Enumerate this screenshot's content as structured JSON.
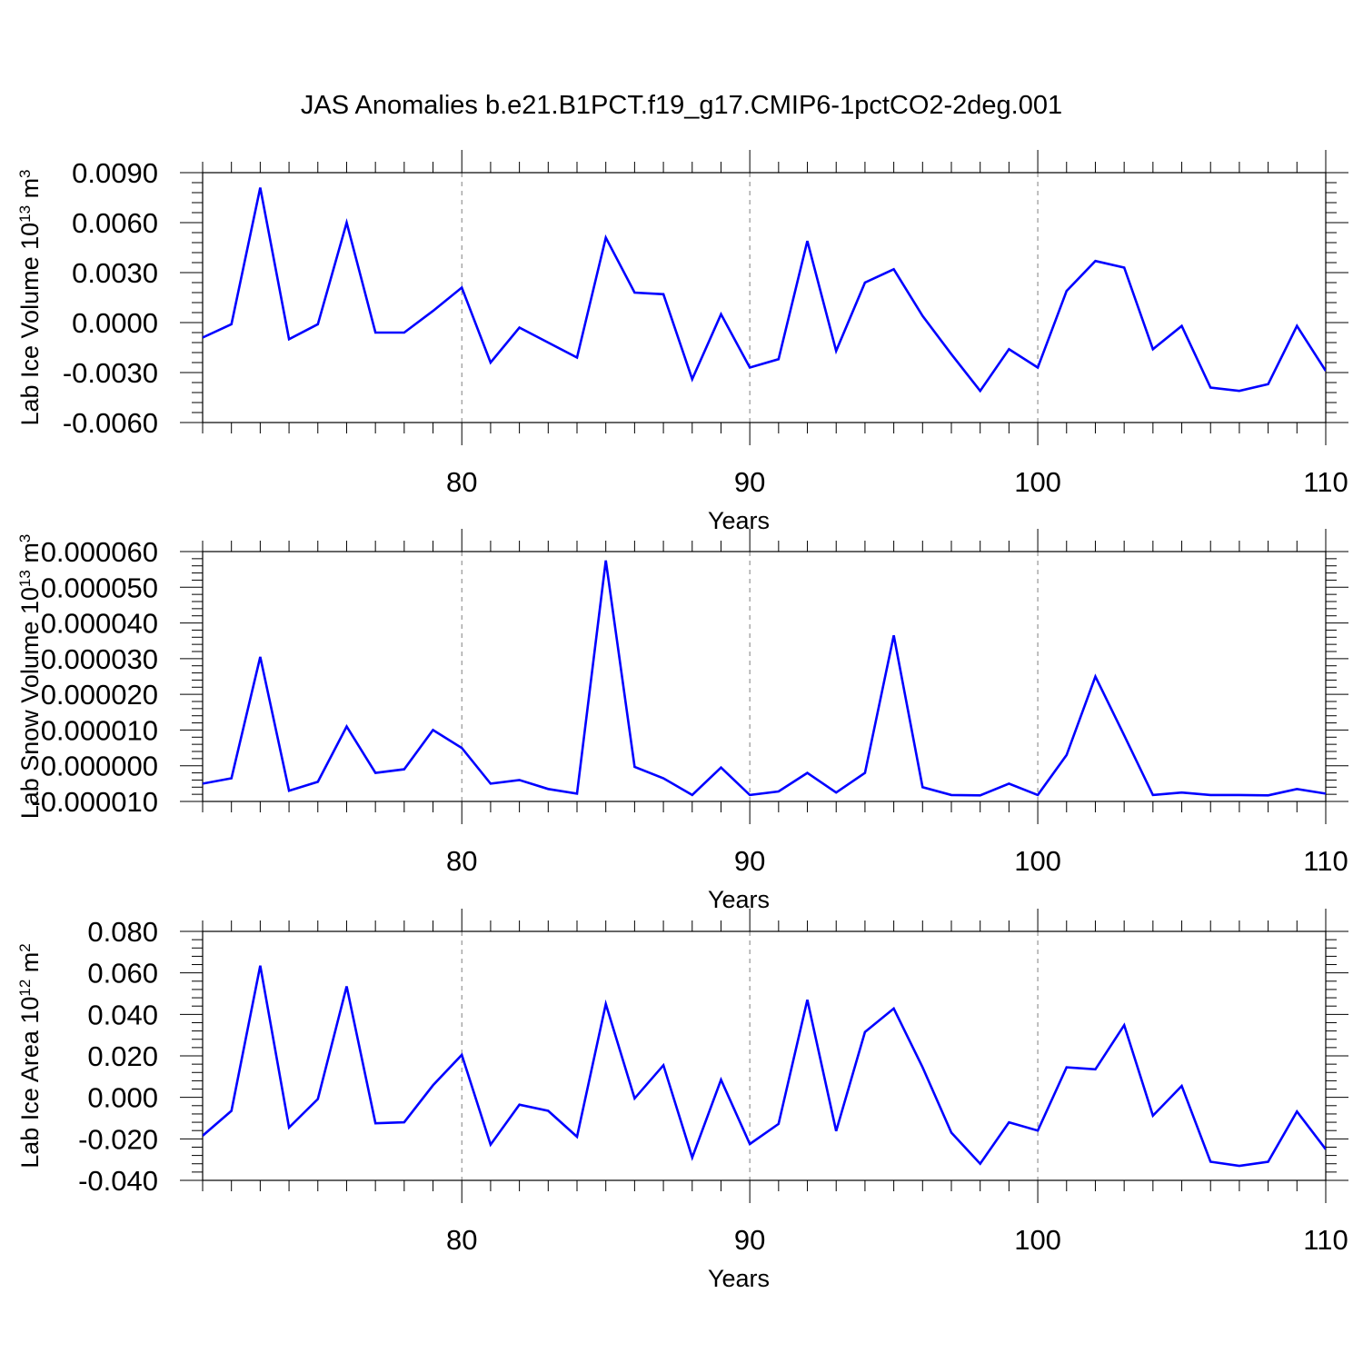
{
  "title": "JAS Anomalies b.e21.B1PCT.f19_g17.CMIP6-1pctCO2-2deg.001",
  "colors": {
    "series": "#0000ff",
    "axis": "#000000",
    "grid": "#808080"
  },
  "chart_data": [
    {
      "type": "line",
      "ylabel": "Lab Ice Volume 10",
      "ylabel_exp": "13",
      "ylabel_unit": " m",
      "ylabel_unit_exp": "3",
      "xlabel": "Years",
      "xlim": [
        71,
        110
      ],
      "ylim": [
        -0.006,
        0.009
      ],
      "y_ticks": [
        -0.006,
        -0.003,
        0.0,
        0.003,
        0.006,
        0.009
      ],
      "y_tick_labels": [
        "-0.0060",
        "-0.0030",
        "0.0000",
        "0.0030",
        "0.0060",
        "0.0090"
      ],
      "x_ticks": [
        80,
        90,
        100,
        110
      ],
      "x_tick_labels": [
        "80",
        "90",
        "100",
        "110"
      ],
      "grid_x": [
        80,
        90,
        100
      ],
      "x": [
        71,
        72,
        73,
        74,
        75,
        76,
        77,
        78,
        79,
        80,
        81,
        82,
        83,
        84,
        85,
        86,
        87,
        88,
        89,
        90,
        91,
        92,
        93,
        94,
        95,
        96,
        97,
        98,
        99,
        100,
        101,
        102,
        103,
        104,
        105,
        106,
        107,
        108,
        109,
        110
      ],
      "values": [
        -0.0009,
        -0.0001,
        0.0081,
        -0.001,
        -0.0001,
        0.006,
        -0.0006,
        -0.0006,
        0.0007,
        0.0021,
        -0.0024,
        -0.0003,
        -0.0012,
        -0.0021,
        0.0051,
        0.0018,
        0.0017,
        -0.0034,
        0.0005,
        -0.0027,
        -0.0022,
        0.0049,
        -0.0017,
        0.0024,
        0.0032,
        0.0004,
        -0.0019,
        -0.0041,
        -0.0016,
        -0.0027,
        0.0019,
        0.0037,
        0.0033,
        -0.0016,
        -0.0002,
        -0.0039,
        -0.0041,
        -0.0037,
        -0.0002,
        -0.0029
      ]
    },
    {
      "type": "line",
      "ylabel": "Lab Snow Volume 10",
      "ylabel_exp": "13",
      "ylabel_unit": " m",
      "ylabel_unit_exp": "3",
      "xlabel": "Years",
      "xlim": [
        71,
        110
      ],
      "ylim": [
        -1e-05,
        6e-05
      ],
      "y_ticks": [
        -1e-05,
        0.0,
        1e-05,
        2e-05,
        3e-05,
        4e-05,
        5e-05,
        6e-05
      ],
      "y_tick_labels": [
        "-0.000010",
        "0.000000",
        "0.000010",
        "0.000020",
        "0.000030",
        "0.000040",
        "0.000050",
        "0.000060"
      ],
      "x_ticks": [
        80,
        90,
        100,
        110
      ],
      "x_tick_labels": [
        "80",
        "90",
        "100",
        "110"
      ],
      "grid_x": [
        80,
        90,
        100
      ],
      "x": [
        71,
        72,
        73,
        74,
        75,
        76,
        77,
        78,
        79,
        80,
        81,
        82,
        83,
        84,
        85,
        86,
        87,
        88,
        89,
        90,
        91,
        92,
        93,
        94,
        95,
        96,
        97,
        98,
        99,
        100,
        101,
        102,
        103,
        104,
        105,
        106,
        107,
        108,
        109,
        110
      ],
      "values": [
        -5e-06,
        -3.5e-06,
        3.05e-05,
        -7e-06,
        -4.5e-06,
        1.1e-05,
        -2e-06,
        -1e-06,
        1e-05,
        5e-06,
        -5e-06,
        -4e-06,
        -6.5e-06,
        -7.8e-06,
        5.75e-05,
        -3e-07,
        -3.5e-06,
        -8.2e-06,
        -5e-07,
        -8.2e-06,
        -7.2e-06,
        -2e-06,
        -7.5e-06,
        -2e-06,
        3.65e-05,
        -6e-06,
        -8.2e-06,
        -8.3e-06,
        -5e-06,
        -8.2e-06,
        3e-06,
        2.5e-05,
        8.5e-06,
        -8.2e-06,
        -7.5e-06,
        -8.2e-06,
        -8.2e-06,
        -8.3e-06,
        -6.5e-06,
        -7.8e-06
      ]
    },
    {
      "type": "line",
      "ylabel": "Lab Ice Area 10",
      "ylabel_exp": "12",
      "ylabel_unit": " m",
      "ylabel_unit_exp": "2",
      "xlabel": "Years",
      "xlim": [
        71,
        110
      ],
      "ylim": [
        -0.04,
        0.08
      ],
      "y_ticks": [
        -0.04,
        -0.02,
        0.0,
        0.02,
        0.04,
        0.06,
        0.08
      ],
      "y_tick_labels": [
        "-0.040",
        "-0.020",
        "0.000",
        "0.020",
        "0.040",
        "0.060",
        "0.080"
      ],
      "x_ticks": [
        80,
        90,
        100,
        110
      ],
      "x_tick_labels": [
        "80",
        "90",
        "100",
        "110"
      ],
      "grid_x": [
        80,
        90,
        100
      ],
      "x": [
        71,
        72,
        73,
        74,
        75,
        76,
        77,
        78,
        79,
        80,
        81,
        82,
        83,
        84,
        85,
        86,
        87,
        88,
        89,
        90,
        91,
        92,
        93,
        94,
        95,
        96,
        97,
        98,
        99,
        100,
        101,
        102,
        103,
        104,
        105,
        106,
        107,
        108,
        109,
        110
      ],
      "values": [
        -0.0185,
        -0.0065,
        0.0635,
        -0.0145,
        -0.0008,
        0.0535,
        -0.0125,
        -0.012,
        0.0058,
        0.0205,
        -0.0228,
        -0.0035,
        -0.0065,
        -0.019,
        0.045,
        -0.0005,
        0.0155,
        -0.029,
        0.0085,
        -0.0225,
        -0.0128,
        0.047,
        -0.0162,
        0.0315,
        0.0428,
        0.0145,
        -0.017,
        -0.032,
        -0.012,
        -0.016,
        0.0145,
        0.0135,
        0.0348,
        -0.0088,
        0.0055,
        -0.031,
        -0.033,
        -0.031,
        -0.0068,
        -0.025
      ]
    }
  ]
}
